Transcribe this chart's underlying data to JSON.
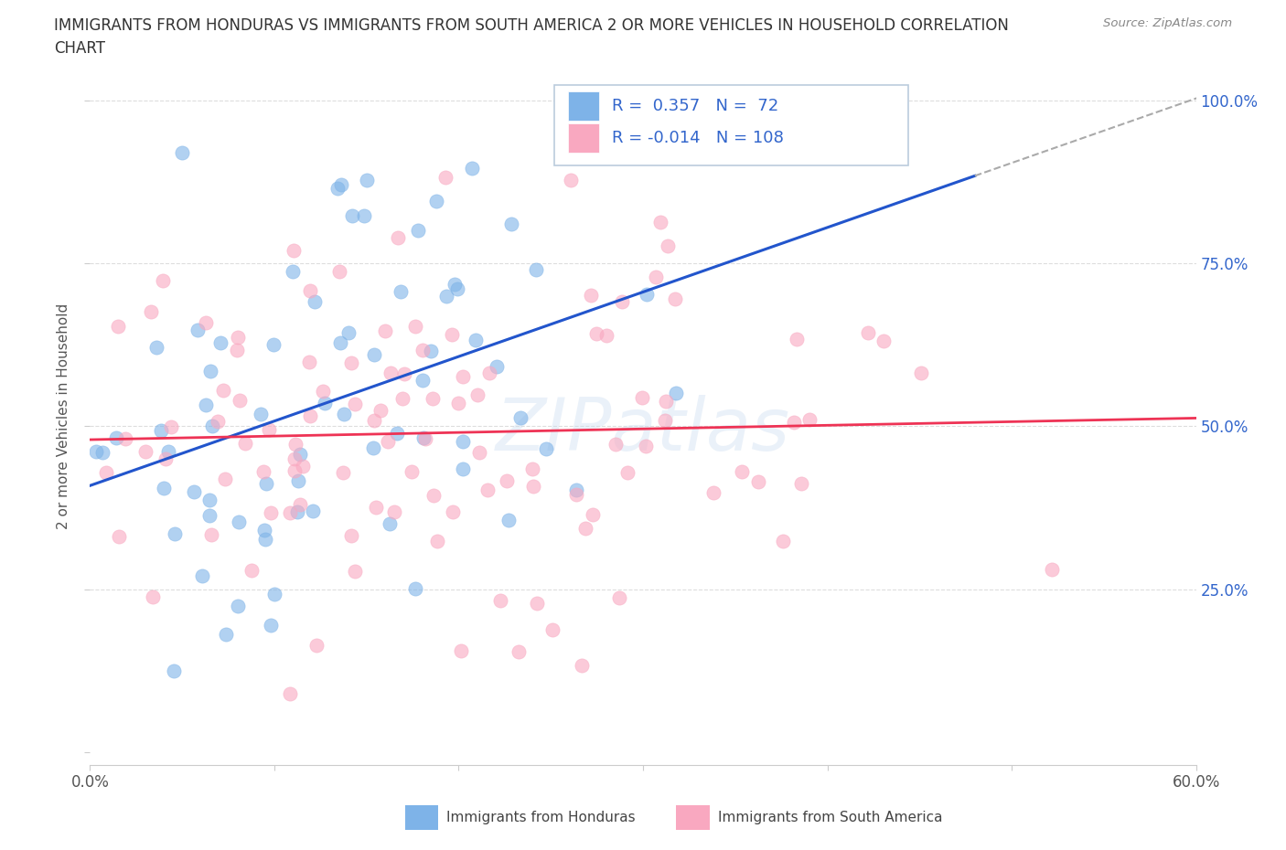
{
  "title_line1": "IMMIGRANTS FROM HONDURAS VS IMMIGRANTS FROM SOUTH AMERICA 2 OR MORE VEHICLES IN HOUSEHOLD CORRELATION",
  "title_line2": "CHART",
  "source": "Source: ZipAtlas.com",
  "ylabel": "2 or more Vehicles in Household",
  "xlim": [
    0.0,
    0.6
  ],
  "ylim": [
    0.0,
    1.05
  ],
  "yticks": [
    0.0,
    0.25,
    0.5,
    0.75,
    1.0
  ],
  "ytick_labels": [
    "",
    "25.0%",
    "50.0%",
    "75.0%",
    "100.0%"
  ],
  "xticks": [
    0.0,
    0.1,
    0.2,
    0.3,
    0.4,
    0.5,
    0.6
  ],
  "xtick_labels": [
    "0.0%",
    "",
    "",
    "",
    "",
    "",
    "60.0%"
  ],
  "blue_color": "#7EB3E8",
  "pink_color": "#F9A8C0",
  "trend_blue": "#2255CC",
  "trend_pink": "#EE3355",
  "trend_dash": "#AAAAAA",
  "blue_R": 0.357,
  "blue_N": 72,
  "pink_R": -0.014,
  "pink_N": 108,
  "watermark": "ZIPatlas",
  "legend_label_blue": "Immigrants from Honduras",
  "legend_label_pink": "Immigrants from South America",
  "legend_text_color": "#3366CC",
  "grid_color": "#DDDDDD",
  "axis_label_color": "#3366CC",
  "tick_label_color": "#555555",
  "title_color": "#333333"
}
